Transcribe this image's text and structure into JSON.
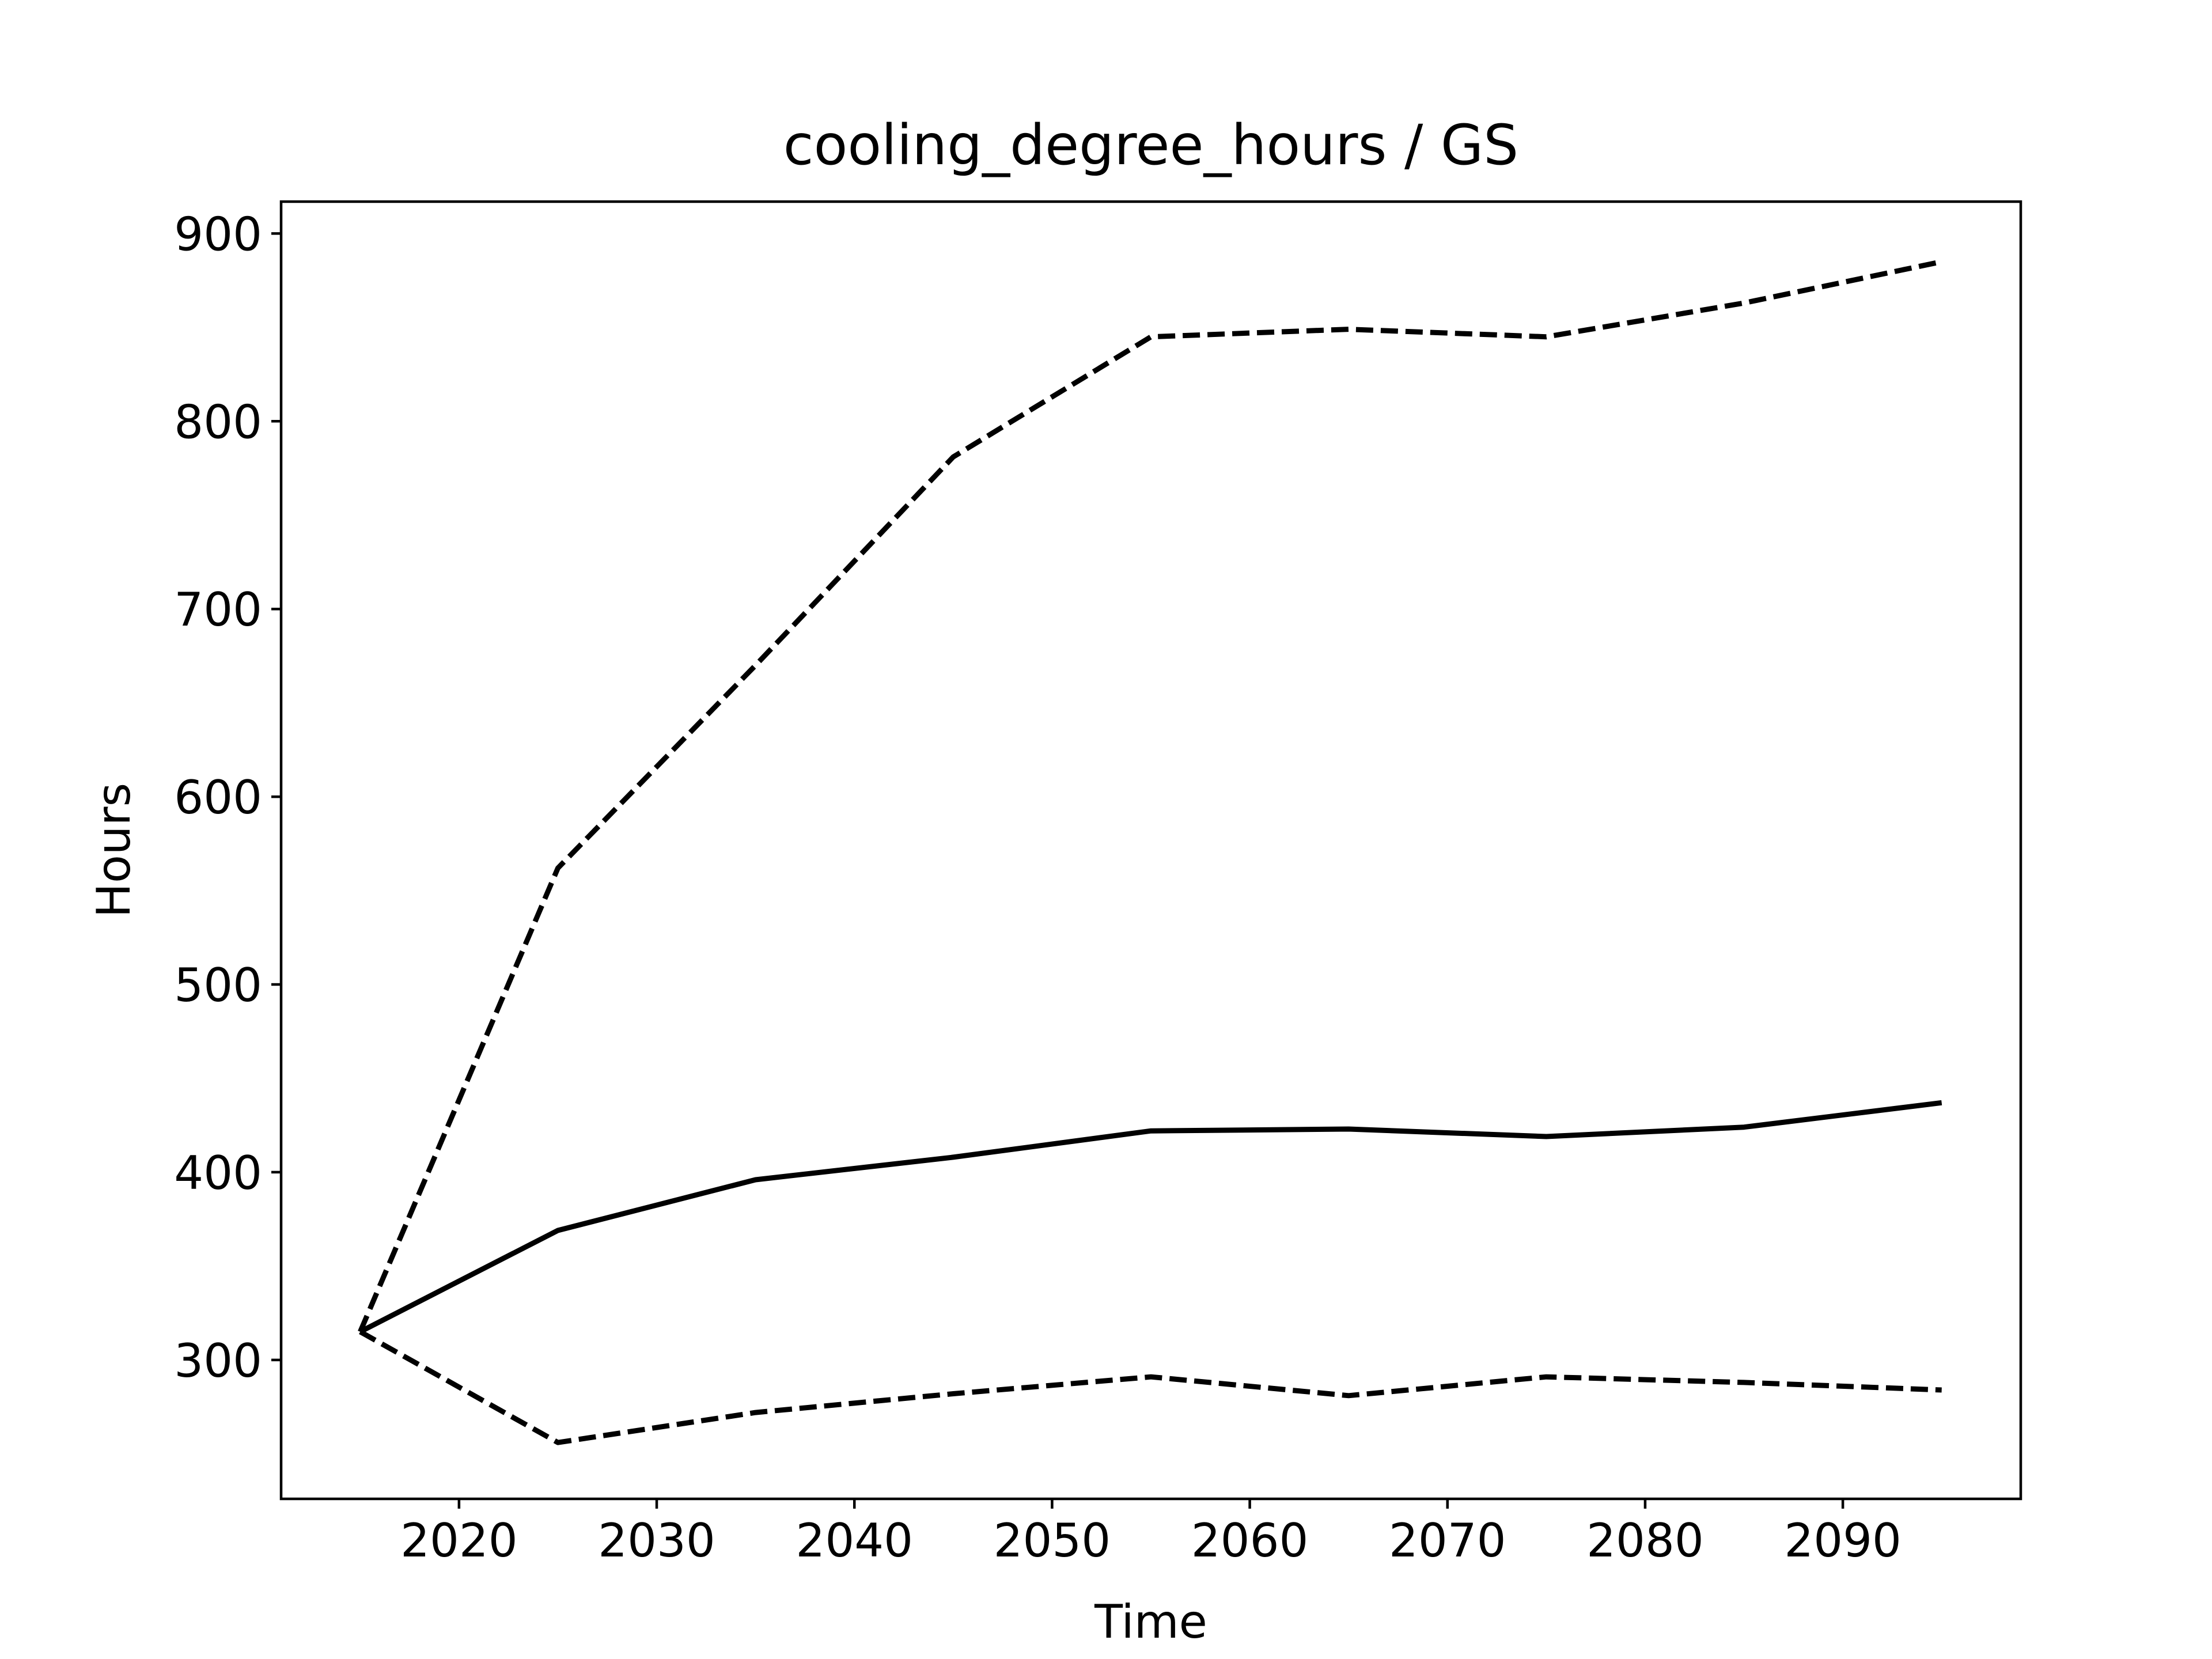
{
  "chart_data": {
    "type": "line",
    "title": "cooling_degree_hours / GS",
    "xlabel": "Time",
    "ylabel": "Hours",
    "xlim": [
      2011,
      2099
    ],
    "ylim": [
      226,
      917
    ],
    "xticks": [
      2020,
      2030,
      2040,
      2050,
      2060,
      2070,
      2080,
      2090
    ],
    "yticks": [
      300,
      400,
      500,
      600,
      700,
      800,
      900
    ],
    "grid": false,
    "legend": "none",
    "x": [
      2015,
      2025,
      2035,
      2045,
      2055,
      2065,
      2075,
      2085,
      2095
    ],
    "series": [
      {
        "id": "upper",
        "style": "dashed",
        "color": "#000000",
        "values": [
          315,
          562,
          670,
          781,
          845,
          849,
          845,
          863,
          885
        ]
      },
      {
        "id": "median",
        "style": "solid",
        "color": "#000000",
        "values": [
          315,
          369,
          396,
          408,
          422,
          423,
          419,
          424,
          437
        ]
      },
      {
        "id": "lower",
        "style": "dashed",
        "color": "#000000",
        "values": [
          315,
          256,
          272,
          282,
          291,
          281,
          291,
          288,
          284
        ]
      }
    ]
  }
}
